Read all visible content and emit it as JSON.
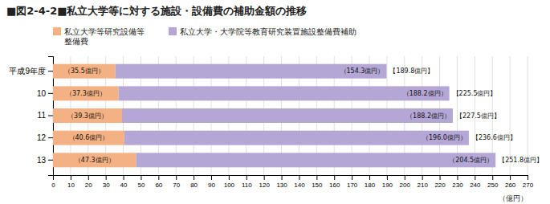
{
  "chart_data": {
    "type": "bar",
    "orientation": "horizontal",
    "stacked": true,
    "data_labels": true,
    "grid": true,
    "title": "■図2-4-2■私立大学等に対する施設・設備費の補助金額の推移",
    "xlabel": "（億円）",
    "categories": [
      "平成9年度",
      "10",
      "11",
      "12",
      "13"
    ],
    "series": [
      {
        "name": "私立大学等研究設備等\n整備費",
        "color": "#f4b183",
        "values": [
          35.5,
          37.3,
          39.3,
          40.6,
          47.3
        ],
        "value_labels": [
          "（35.5億円）",
          "（37.3億円）",
          "（39.3億円）",
          "（40.6億円）",
          "（47.3億円）"
        ]
      },
      {
        "name": "私立大学・大学院等教育研究装置施設整備費補助",
        "color": "#b4a7d6",
        "values": [
          154.3,
          188.2,
          188.2,
          196.0,
          204.5
        ],
        "value_labels": [
          "（154.3億円）",
          "（188.2億円）",
          "（188.2億円）",
          "（196.0億円）",
          "（204.5億円）"
        ]
      }
    ],
    "totals": [
      189.8,
      225.5,
      227.5,
      236.6,
      251.8
    ],
    "total_labels": [
      "【189.8億円】",
      "【225.5億円】",
      "【227.5億円】",
      "【236.6億円】",
      "【251.8億円】"
    ],
    "xlim": [
      0,
      270
    ],
    "xticks": [
      0,
      10,
      20,
      30,
      40,
      50,
      60,
      70,
      80,
      90,
      100,
      110,
      120,
      130,
      140,
      150,
      160,
      170,
      180,
      190,
      200,
      210,
      220,
      230,
      240,
      250,
      260,
      270
    ]
  }
}
